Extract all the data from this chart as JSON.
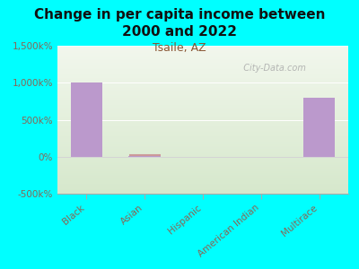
{
  "title": "Change in per capita income between\n2000 and 2022",
  "subtitle": "Tsaile, AZ",
  "categories": [
    "Black",
    "Asian",
    "Hispanic",
    "American Indian",
    "Multirace"
  ],
  "values": [
    1000000,
    15000,
    0,
    0,
    800000
  ],
  "bar_color": "#bb99cc",
  "background_outer": "#00ffff",
  "ylim": [
    -500000,
    1500000
  ],
  "yticks": [
    -500000,
    0,
    500000,
    1000000,
    1500000
  ],
  "ytick_labels": [
    "-500k%",
    "0%",
    "500k%",
    "1,000k%",
    "1,500k%"
  ],
  "title_fontsize": 11,
  "subtitle_fontsize": 9,
  "subtitle_color": "#885533",
  "tick_color": "#886655",
  "watermark": "  City-Data.com",
  "asian_line_color": "#cc9999",
  "plot_bg_top": "#f2f7ea",
  "plot_bg_bottom": "#d8e8cc"
}
